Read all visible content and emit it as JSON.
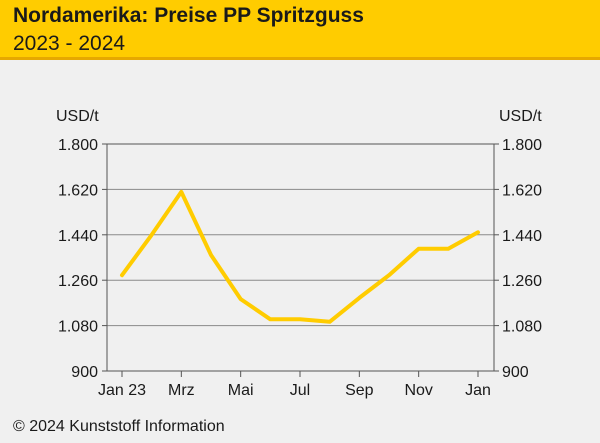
{
  "header": {
    "title": "Nordamerika: Preise PP Spritzguss",
    "subtitle": "2023 - 2024"
  },
  "footer": {
    "copyright": "© 2024 Kunststoff Information"
  },
  "colors": {
    "header_bg": "#ffcc00",
    "line": "#ffcc00",
    "background": "#f0f0f0",
    "grid": "#8a8a8a"
  },
  "chart_data": {
    "type": "line",
    "title": "Nordamerika: Preise PP Spritzguss",
    "subtitle": "2023 - 2024",
    "ylabel": "USD/t",
    "ylabel_right": "USD/t",
    "ylim": [
      900,
      1800
    ],
    "yticks": [
      900,
      1080,
      1260,
      1440,
      1620,
      1800
    ],
    "ytick_labels": [
      "900",
      "1.080",
      "1.260",
      "1.440",
      "1.620",
      "1.800"
    ],
    "x_count": 13,
    "x_tick_positions": [
      0,
      2,
      4,
      6,
      8,
      10,
      12
    ],
    "x_tick_labels": [
      "Jan 23",
      "Mrz",
      "Mai",
      "Jul",
      "Sep",
      "Nov",
      "Jan"
    ],
    "series": [
      {
        "name": "PP Spritzguss",
        "values": [
          1280,
          1440,
          1610,
          1360,
          1185,
          1105,
          1105,
          1095,
          1190,
          1280,
          1385,
          1385,
          1450
        ]
      }
    ],
    "grid": true
  }
}
